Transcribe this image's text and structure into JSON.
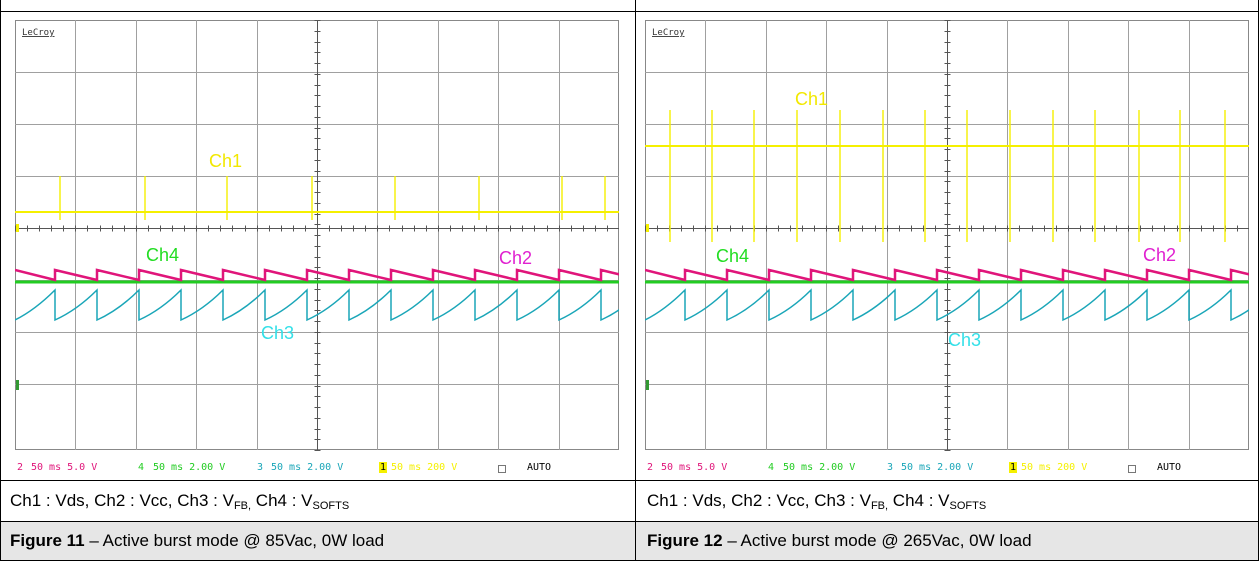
{
  "panels": [
    {
      "brand": "LeCroy",
      "labels": {
        "ch1": "Ch1",
        "ch2": "Ch2",
        "ch3": "Ch3",
        "ch4": "Ch4"
      },
      "status": {
        "ch2": {
          "num": "2",
          "text": "50 ms 5.0 V"
        },
        "ch4": {
          "num": "4",
          "text": "50 ms 2.00 V"
        },
        "ch3": {
          "num": "3",
          "text": "50 ms 2.00 V"
        },
        "ch1": {
          "num": "1",
          "text": "50 ms 200 V"
        },
        "mode": "AUTO"
      },
      "channels_caption": {
        "a": "Ch1 : Vds, Ch2 : Vcc, Ch3 : V",
        "fb": "FB,",
        "b": " Ch4 : V",
        "softs": "SOFTS"
      },
      "figure": {
        "label": "Figure 11",
        "text": " – Active burst mode @ 85Vac, 0W load"
      }
    },
    {
      "brand": "LeCroy",
      "labels": {
        "ch1": "Ch1",
        "ch2": "Ch2",
        "ch3": "Ch3",
        "ch4": "Ch4"
      },
      "status": {
        "ch2": {
          "num": "2",
          "text": "50 ms 5.0 V"
        },
        "ch4": {
          "num": "4",
          "text": "50 ms 2.00 V"
        },
        "ch3": {
          "num": "3",
          "text": "50 ms 2.00 V"
        },
        "ch1": {
          "num": "1",
          "text": "50 ms 200 V"
        },
        "mode": "AUTO"
      },
      "channels_caption": {
        "a": "Ch1 : Vds, Ch2 : Vcc, Ch3 : V",
        "fb": "FB,",
        "b": " Ch4 : V",
        "softs": "SOFTS"
      },
      "figure": {
        "label": "Figure 12",
        "text": " – Active burst mode @ 265Vac, 0W load"
      }
    }
  ],
  "colors": {
    "ch1": "#f5f000",
    "ch2": "#e0157a",
    "ch3": "#1aa6b8",
    "ch4": "#22cc22",
    "ch1_label": "#f2e800",
    "ch2_label": "#e020d0",
    "ch3_label": "#33e0e8",
    "ch4_label": "#22dd22",
    "grid": "#a0a0a0"
  }
}
